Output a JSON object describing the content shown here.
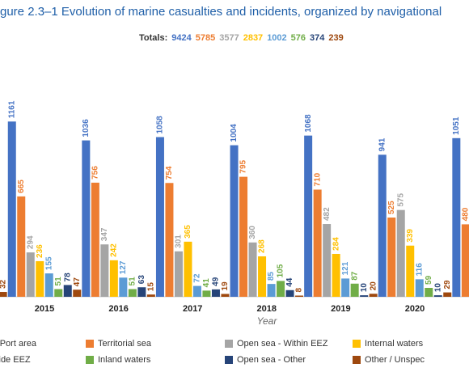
{
  "chart_data": {
    "type": "bar",
    "title": "gure 2.3–1 Evolution of marine casualties and incidents, organized by navigational",
    "totals_label": "Totals:",
    "totals": [
      9424,
      5785,
      3577,
      2837,
      1002,
      576,
      374,
      239
    ],
    "x_label": "Year",
    "categories": [
      null,
      "2015",
      "2016",
      "2017",
      "2018",
      "2019",
      "2020",
      null
    ],
    "ylim": [
      0,
      1200
    ],
    "series": [
      {
        "name": "- Port area",
        "color": "#4472c4",
        "values": [
          null,
          1161,
          1036,
          1058,
          1004,
          1068,
          941,
          1051
        ]
      },
      {
        "name": "Territorial sea",
        "color": "#ed7d31",
        "values": [
          null,
          665,
          756,
          754,
          795,
          710,
          525,
          480
        ]
      },
      {
        "name": "Open sea - Within EEZ",
        "color": "#a5a5a5",
        "values": [
          null,
          294,
          347,
          301,
          360,
          482,
          575,
          null
        ]
      },
      {
        "name": "Internal waters",
        "color": "#ffc000",
        "values": [
          null,
          236,
          242,
          365,
          268,
          284,
          339,
          null
        ]
      },
      {
        "name": "side EEZ",
        "color": "#5b9bd5",
        "values": [
          null,
          155,
          127,
          72,
          85,
          121,
          116,
          null
        ]
      },
      {
        "name": "Inland waters",
        "color": "#70ad47",
        "values": [
          null,
          51,
          51,
          41,
          105,
          87,
          59,
          null
        ]
      },
      {
        "name": "Open sea - Other",
        "color": "#264478",
        "values": [
          null,
          78,
          63,
          49,
          44,
          10,
          10,
          null
        ]
      },
      {
        "name": "Other / Unspec",
        "color": "#9e480e",
        "values": [
          32,
          47,
          15,
          19,
          8,
          20,
          29,
          null
        ]
      }
    ]
  }
}
